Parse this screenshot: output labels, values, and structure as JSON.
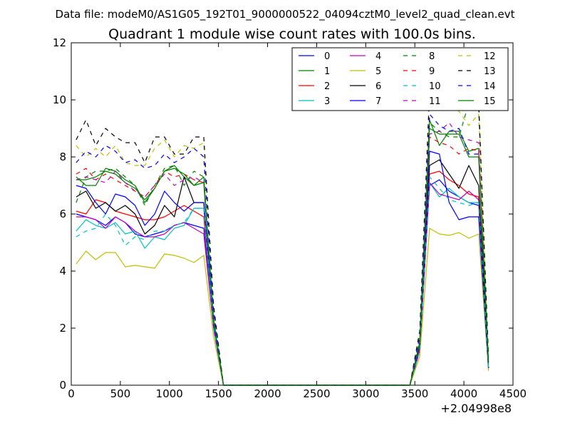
{
  "header": {
    "data_file_label": "Data file: modeM0/AS1G05_192T01_9000000522_04094cztM0_level2_quad_clean.evt"
  },
  "chart_data": {
    "type": "line",
    "title": "Quadrant 1 module wise count rates with 100.0s bins.",
    "xlabel": "",
    "ylabel": "",
    "x_offset_label": "+2.04998e8",
    "xlim": [
      0,
      4500
    ],
    "ylim": [
      0,
      12
    ],
    "xticks": [
      0,
      500,
      1000,
      1500,
      2000,
      2500,
      3000,
      3500,
      4000,
      4500
    ],
    "yticks": [
      0,
      2,
      4,
      6,
      8,
      10,
      12
    ],
    "grid": false,
    "legend_position": "top-right",
    "x": [
      50,
      150,
      250,
      350,
      450,
      550,
      650,
      750,
      850,
      950,
      1050,
      1150,
      1250,
      1350,
      1450,
      1550,
      1650,
      1750,
      1850,
      1950,
      2050,
      2150,
      2250,
      2350,
      2450,
      2550,
      2650,
      2750,
      2850,
      2950,
      3050,
      3150,
      3250,
      3350,
      3450,
      3550,
      3650,
      3750,
      3850,
      3950,
      4050,
      4150,
      4250
    ],
    "series": [
      {
        "name": "0",
        "color": "#0000ff",
        "dash": "solid",
        "values": [
          6.0,
          5.9,
          5.8,
          5.6,
          5.9,
          5.7,
          5.3,
          5.2,
          5.3,
          5.4,
          5.6,
          5.7,
          5.6,
          5.5,
          2.0,
          0,
          0,
          0,
          0,
          0,
          0,
          0,
          0,
          0,
          0,
          0,
          0,
          0,
          0,
          0,
          0,
          0,
          0,
          0,
          0,
          1.2,
          7.0,
          7.2,
          6.8,
          6.6,
          6.4,
          6.3,
          0.6
        ]
      },
      {
        "name": "1",
        "color": "#008000",
        "dash": "solid",
        "values": [
          7.2,
          7.2,
          7.3,
          7.5,
          7.4,
          7.1,
          6.9,
          6.5,
          6.9,
          7.5,
          7.7,
          7.3,
          7.0,
          7.3,
          2.3,
          0,
          0,
          0,
          0,
          0,
          0,
          0,
          0,
          0,
          0,
          0,
          0,
          0,
          0,
          0,
          0,
          0,
          0,
          0,
          0,
          1.5,
          9.3,
          8.4,
          8.9,
          8.9,
          8.2,
          8.3,
          0.8
        ]
      },
      {
        "name": "2",
        "color": "#ff0000",
        "dash": "solid",
        "values": [
          6.1,
          6.0,
          6.5,
          6.4,
          6.1,
          6.0,
          5.9,
          5.8,
          5.8,
          5.9,
          6.1,
          6.3,
          6.1,
          5.9,
          2.1,
          0,
          0,
          0,
          0,
          0,
          0,
          0,
          0,
          0,
          0,
          0,
          0,
          0,
          0,
          0,
          0,
          0,
          0,
          0,
          0,
          1.3,
          7.4,
          7.5,
          7.2,
          7.0,
          6.7,
          6.6,
          0.6
        ]
      },
      {
        "name": "3",
        "color": "#00bfbf",
        "dash": "solid",
        "values": [
          5.4,
          5.8,
          5.6,
          5.5,
          5.7,
          5.3,
          5.4,
          4.8,
          5.2,
          5.1,
          5.5,
          5.6,
          6.2,
          6.2,
          2.0,
          0,
          0,
          0,
          0,
          0,
          0,
          0,
          0,
          0,
          0,
          0,
          0,
          0,
          0,
          0,
          0,
          0,
          0,
          0,
          0,
          1.2,
          7.1,
          6.6,
          6.9,
          6.6,
          6.4,
          6.4,
          0.6
        ]
      },
      {
        "name": "4",
        "color": "#bf00bf",
        "dash": "solid",
        "values": [
          5.9,
          5.9,
          5.8,
          5.5,
          5.9,
          5.7,
          5.4,
          5.2,
          5.2,
          5.3,
          5.6,
          5.7,
          5.5,
          5.3,
          2.0,
          0,
          0,
          0,
          0,
          0,
          0,
          0,
          0,
          0,
          0,
          0,
          0,
          0,
          0,
          0,
          0,
          0,
          0,
          0,
          0,
          1.2,
          7.1,
          6.7,
          6.6,
          6.5,
          6.8,
          6.5,
          0.6
        ]
      },
      {
        "name": "5",
        "color": "#bfbf00",
        "dash": "solid",
        "values": [
          4.25,
          4.7,
          4.4,
          4.65,
          4.65,
          4.15,
          4.2,
          4.15,
          4.1,
          4.6,
          4.55,
          4.45,
          4.3,
          4.55,
          1.7,
          0,
          0,
          0,
          0,
          0,
          0,
          0,
          0,
          0,
          0,
          0,
          0,
          0,
          0,
          0,
          0,
          0,
          0,
          0,
          0,
          1.0,
          5.5,
          5.3,
          5.25,
          5.35,
          5.15,
          5.3,
          0.5
        ]
      },
      {
        "name": "6",
        "color": "#000000",
        "dash": "solid",
        "values": [
          6.6,
          6.8,
          6.2,
          6.4,
          6.1,
          6.3,
          6.0,
          5.3,
          5.6,
          6.3,
          5.9,
          7.3,
          6.4,
          6.4,
          2.2,
          0,
          0,
          0,
          0,
          0,
          0,
          0,
          0,
          0,
          0,
          0,
          0,
          0,
          0,
          0,
          0,
          0,
          0,
          0,
          0,
          1.4,
          7.7,
          7.9,
          7.4,
          6.9,
          7.7,
          7.0,
          0.7
        ]
      },
      {
        "name": "7",
        "color": "#0000ff",
        "dash": "solid",
        "values": [
          7.0,
          6.9,
          6.4,
          6.0,
          6.7,
          6.6,
          6.3,
          5.6,
          6.0,
          6.8,
          6.4,
          6.1,
          6.4,
          6.4,
          2.2,
          0,
          0,
          0,
          0,
          0,
          0,
          0,
          0,
          0,
          0,
          0,
          0,
          0,
          0,
          0,
          0,
          0,
          0,
          0,
          0,
          1.4,
          8.2,
          8.1,
          6.4,
          5.8,
          5.9,
          5.9,
          0.6
        ]
      },
      {
        "name": "8",
        "color": "#008000",
        "dash": "dashed",
        "values": [
          6.4,
          7.3,
          7.5,
          7.5,
          7.6,
          7.3,
          7.0,
          6.3,
          7.0,
          7.6,
          7.7,
          7.0,
          7.5,
          7.3,
          2.4,
          0,
          0,
          0,
          0,
          0,
          0,
          0,
          0,
          0,
          0,
          0,
          0,
          0,
          0,
          0,
          0,
          0,
          0,
          0,
          0,
          1.6,
          9.2,
          8.9,
          8.7,
          8.7,
          9.9,
          10.0,
          0.9
        ]
      },
      {
        "name": "9",
        "color": "#ff0000",
        "dash": "dashed",
        "values": [
          7.4,
          7.6,
          7.2,
          7.4,
          7.2,
          7.0,
          6.8,
          6.6,
          7.0,
          7.5,
          7.3,
          7.4,
          7.2,
          7.1,
          2.4,
          0,
          0,
          0,
          0,
          0,
          0,
          0,
          0,
          0,
          0,
          0,
          0,
          0,
          0,
          0,
          0,
          0,
          0,
          0,
          0,
          1.5,
          8.7,
          8.5,
          8.4,
          8.1,
          8.3,
          8.2,
          0.8
        ]
      },
      {
        "name": "10",
        "color": "#00bfbf",
        "dash": "dashed",
        "values": [
          5.2,
          5.4,
          5.5,
          6.0,
          5.6,
          4.9,
          5.2,
          5.1,
          5.4,
          5.4,
          5.6,
          5.7,
          6.2,
          6.2,
          2.0,
          0,
          0,
          0,
          0,
          0,
          0,
          0,
          0,
          0,
          0,
          0,
          0,
          0,
          0,
          0,
          0,
          0,
          0,
          0,
          0,
          1.2,
          7.3,
          6.9,
          6.5,
          6.4,
          6.3,
          6.4,
          0.6
        ]
      },
      {
        "name": "11",
        "color": "#bf00bf",
        "dash": "dashed",
        "values": [
          7.2,
          7.3,
          7.2,
          7.1,
          7.5,
          7.1,
          6.8,
          6.6,
          7.0,
          7.4,
          7.0,
          7.2,
          7.3,
          7.1,
          2.3,
          0,
          0,
          0,
          0,
          0,
          0,
          0,
          0,
          0,
          0,
          0,
          0,
          0,
          0,
          0,
          0,
          0,
          0,
          0,
          0,
          1.5,
          8.8,
          8.9,
          9.2,
          8.7,
          8.6,
          8.5,
          0.8
        ]
      },
      {
        "name": "12",
        "color": "#bfbf00",
        "dash": "dashed",
        "values": [
          8.4,
          8.0,
          8.3,
          8.0,
          8.4,
          7.8,
          7.7,
          7.7,
          8.3,
          8.6,
          8.0,
          8.4,
          8.3,
          8.5,
          2.7,
          0,
          0,
          0,
          0,
          0,
          0,
          0,
          0,
          0,
          0,
          0,
          0,
          0,
          0,
          0,
          0,
          0,
          0,
          0,
          0,
          1.8,
          10.2,
          9.8,
          9.8,
          9.6,
          9.1,
          9.5,
          0.9
        ]
      },
      {
        "name": "13",
        "color": "#000000",
        "dash": "dashed",
        "values": [
          8.6,
          9.3,
          8.4,
          9.0,
          8.7,
          8.5,
          8.5,
          7.8,
          8.7,
          8.7,
          8.1,
          8.1,
          8.7,
          8.7,
          2.8,
          0,
          0,
          0,
          0,
          0,
          0,
          0,
          0,
          0,
          0,
          0,
          0,
          0,
          0,
          0,
          0,
          0,
          0,
          0,
          0,
          1.9,
          10.3,
          10.2,
          10.0,
          10.1,
          9.8,
          9.8,
          1.0
        ]
      },
      {
        "name": "14",
        "color": "#0000ff",
        "dash": "dashed",
        "values": [
          7.8,
          8.2,
          8.0,
          8.4,
          8.2,
          7.8,
          7.9,
          7.6,
          7.7,
          8.1,
          7.8,
          8.0,
          8.3,
          8.0,
          2.6,
          0,
          0,
          0,
          0,
          0,
          0,
          0,
          0,
          0,
          0,
          0,
          0,
          0,
          0,
          0,
          0,
          0,
          0,
          0,
          0,
          1.7,
          9.5,
          9.1,
          8.9,
          9.0,
          8.1,
          8.1,
          0.8
        ]
      },
      {
        "name": "15",
        "color": "#008000",
        "dash": "solid",
        "values": [
          7.3,
          7.0,
          7.0,
          7.6,
          7.5,
          7.2,
          7.0,
          6.4,
          6.9,
          7.5,
          7.6,
          7.4,
          7.0,
          7.1,
          2.3,
          0,
          0,
          0,
          0,
          0,
          0,
          0,
          0,
          0,
          0,
          0,
          0,
          0,
          0,
          0,
          0,
          0,
          0,
          0,
          0,
          1.5,
          9.0,
          8.8,
          8.8,
          8.8,
          8.0,
          8.0,
          0.8
        ]
      }
    ]
  }
}
